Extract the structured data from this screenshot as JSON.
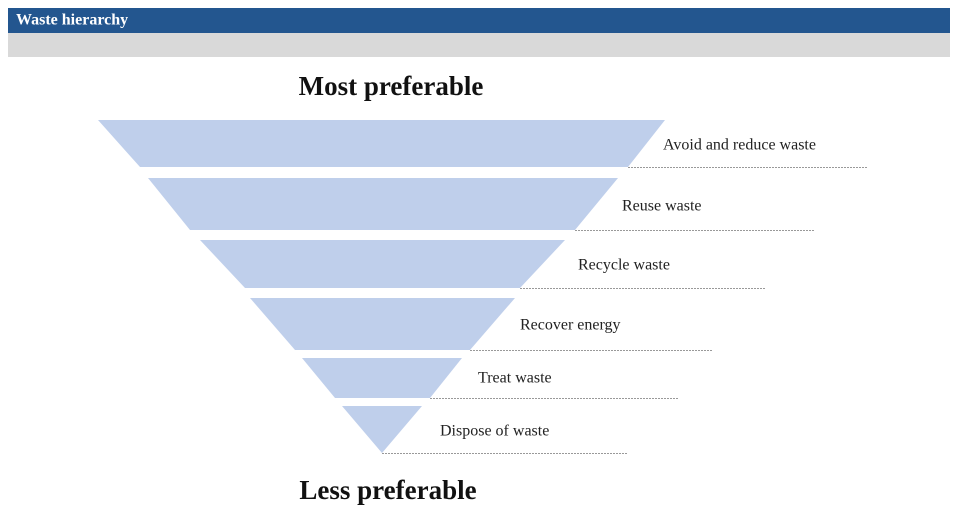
{
  "header": {
    "title": "Waste hierarchy"
  },
  "top_label": "Most preferable",
  "bottom_label": "Less preferable",
  "levels": [
    "Avoid and reduce waste",
    "Reuse waste",
    "Recycle waste",
    "Recover energy",
    "Treat waste",
    "Dispose of waste"
  ]
}
